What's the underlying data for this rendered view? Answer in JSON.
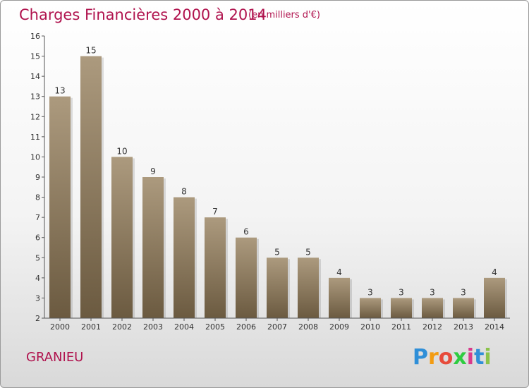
{
  "header": {
    "title": "Charges Financières 2000 à 2014",
    "subtitle": "(en milliers d'€)"
  },
  "commune": "GRANIEU",
  "logo": {
    "text": "Proxiti",
    "letters": [
      "P",
      "r",
      "o",
      "x",
      "i",
      "t",
      "i"
    ],
    "colors": [
      "#2f8fd8",
      "#f39c12",
      "#e74c3c",
      "#2ecc40",
      "#d93a8b",
      "#2f8fd8",
      "#8bc34a"
    ]
  },
  "colors": {
    "title": "#b0134e",
    "bar_top": "#ac9a7e",
    "bar_bottom": "#6b5a40",
    "axis": "#555555"
  },
  "chart_data": {
    "type": "bar",
    "categories": [
      "2000",
      "2001",
      "2002",
      "2003",
      "2004",
      "2005",
      "2006",
      "2007",
      "2008",
      "2009",
      "2010",
      "2011",
      "2012",
      "2013",
      "2014"
    ],
    "values": [
      13,
      15,
      10,
      9,
      8,
      7,
      6,
      5,
      5,
      4,
      3,
      3,
      3,
      3,
      4
    ],
    "title": "Charges Financières 2000 à 2014",
    "subtitle": "(en milliers d'€)",
    "xlabel": "",
    "ylabel": "",
    "ylim": [
      2,
      16
    ],
    "yticks": [
      2,
      3,
      4,
      5,
      6,
      7,
      8,
      9,
      10,
      11,
      12,
      13,
      14,
      15,
      16
    ],
    "grid": false,
    "data_labels": true
  }
}
